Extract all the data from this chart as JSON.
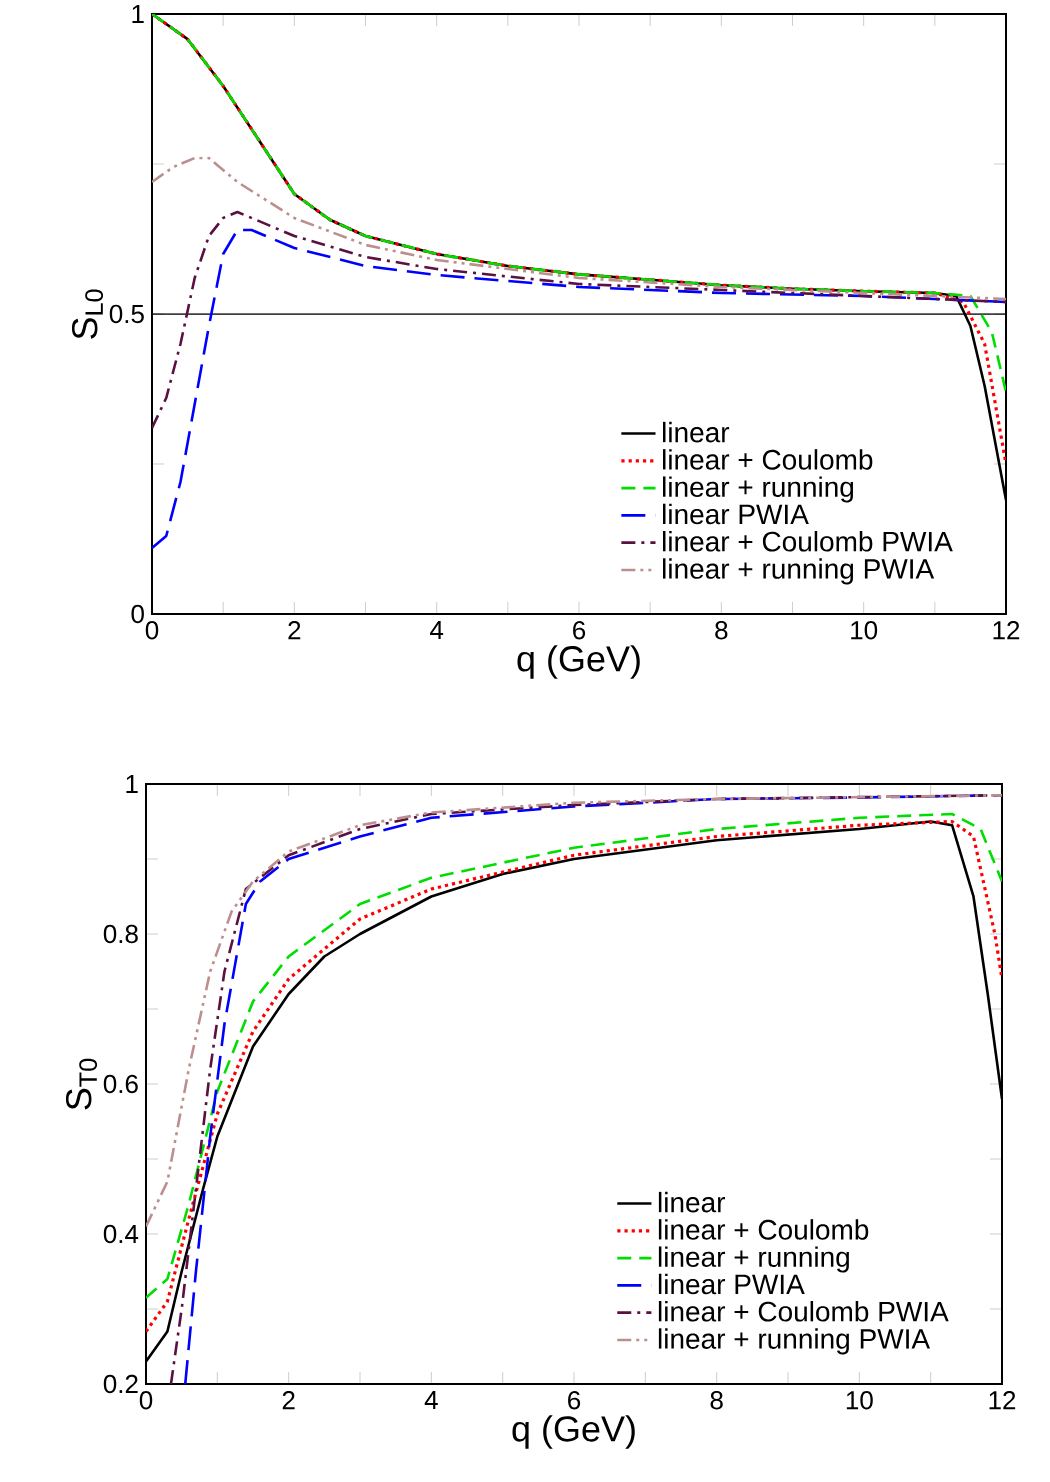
{
  "chart_data": [
    {
      "type": "line",
      "xlabel": "q (GeV)",
      "ylabel": "S$_{L0}$",
      "xlim": [
        0,
        12
      ],
      "ylim": [
        0,
        1
      ],
      "xticks": [
        0,
        {
          "value": 1,
          "label": null
        },
        2,
        {
          "value": 3,
          "label": null
        },
        4,
        {
          "value": 5,
          "label": null
        },
        6,
        {
          "value": 7,
          "label": null
        },
        8,
        {
          "value": 9,
          "label": null
        },
        10,
        {
          "value": 11,
          "label": null
        },
        12
      ],
      "yticks": [
        0,
        {
          "value": 0.25,
          "label": null
        },
        0.5,
        {
          "value": 0.75,
          "label": null
        },
        1
      ],
      "legend": "bottom right",
      "grid": false,
      "ref_lines": [
        {
          "axis": "y",
          "value": 0.5,
          "color": "#000000"
        }
      ],
      "series": [
        {
          "name": "linear",
          "color": "#000000",
          "line_style": "solid",
          "x": [
            0,
            0.5,
            1,
            1.5,
            2,
            2.5,
            3,
            4,
            5,
            6,
            7,
            8,
            9,
            10,
            11,
            11.3,
            11.5,
            11.7,
            12
          ],
          "values": [
            1,
            0.958,
            0.88,
            0.79,
            0.7,
            0.657,
            0.63,
            0.6,
            0.58,
            0.566,
            0.557,
            0.548,
            0.542,
            0.538,
            0.535,
            0.53,
            0.48,
            0.38,
            0.19
          ]
        },
        {
          "name": "linear + Coulomb",
          "color": "#ff0000",
          "line_style": "dotted",
          "x": [
            0,
            0.5,
            1,
            1.5,
            2,
            2.5,
            3,
            4,
            5,
            6,
            7,
            8,
            9,
            10,
            11,
            11.4,
            11.7,
            12
          ],
          "values": [
            1,
            0.958,
            0.88,
            0.79,
            0.7,
            0.657,
            0.63,
            0.6,
            0.58,
            0.566,
            0.557,
            0.548,
            0.542,
            0.538,
            0.535,
            0.52,
            0.45,
            0.25
          ]
        },
        {
          "name": "linear + running",
          "color": "#00dd00",
          "line_style": "dashed",
          "x": [
            0,
            0.5,
            1,
            1.5,
            2,
            2.5,
            3,
            4,
            5,
            6,
            7,
            8,
            9,
            10,
            11,
            11.5,
            11.8,
            12
          ],
          "values": [
            1,
            0.958,
            0.88,
            0.79,
            0.7,
            0.657,
            0.63,
            0.6,
            0.58,
            0.566,
            0.557,
            0.548,
            0.542,
            0.538,
            0.535,
            0.53,
            0.47,
            0.37
          ]
        },
        {
          "name": "linear PWIA",
          "color": "#0000ff",
          "line_style": "longdashed",
          "x": [
            0,
            0.2,
            0.4,
            0.6,
            0.8,
            1,
            1.2,
            1.4,
            2,
            3,
            4,
            6,
            8,
            10,
            12
          ],
          "values": [
            0.11,
            0.13,
            0.22,
            0.35,
            0.48,
            0.6,
            0.64,
            0.64,
            0.61,
            0.58,
            0.565,
            0.545,
            0.535,
            0.53,
            0.52
          ]
        },
        {
          "name": "linear + Coulomb PWIA",
          "color": "#5a1040",
          "line_style": "dashdot",
          "x": [
            0,
            0.2,
            0.4,
            0.6,
            0.8,
            1,
            1.2,
            2,
            3,
            4,
            6,
            8,
            10,
            12
          ],
          "values": [
            0.31,
            0.36,
            0.45,
            0.56,
            0.63,
            0.66,
            0.67,
            0.63,
            0.595,
            0.575,
            0.55,
            0.54,
            0.53,
            0.52
          ]
        },
        {
          "name": "linear + running PWIA",
          "color": "#bc8f8f",
          "line_style": "dashdotdot",
          "x": [
            0,
            0.3,
            0.6,
            0.8,
            1.2,
            2,
            3,
            4,
            6,
            8,
            10,
            12
          ],
          "values": [
            0.72,
            0.745,
            0.76,
            0.76,
            0.72,
            0.66,
            0.615,
            0.59,
            0.56,
            0.545,
            0.535,
            0.525
          ]
        }
      ]
    },
    {
      "type": "line",
      "xlabel": "q (GeV)",
      "ylabel": "S$_{T0}$",
      "xlim": [
        0,
        12
      ],
      "ylim": [
        0.2,
        1
      ],
      "xticks": [
        0,
        {
          "value": 1,
          "label": null
        },
        2,
        {
          "value": 3,
          "label": null
        },
        4,
        {
          "value": 5,
          "label": null
        },
        6,
        {
          "value": 7,
          "label": null
        },
        8,
        {
          "value": 9,
          "label": null
        },
        10,
        {
          "value": 11,
          "label": null
        },
        12
      ],
      "yticks": [
        0.2,
        {
          "value": 0.3,
          "label": null
        },
        0.4,
        {
          "value": 0.5,
          "label": null
        },
        0.6,
        {
          "value": 0.7,
          "label": null
        },
        0.8,
        {
          "value": 0.9,
          "label": null
        },
        1
      ],
      "legend": "bottom right",
      "grid": false,
      "series": [
        {
          "name": "linear",
          "color": "#000000",
          "line_style": "solid",
          "x": [
            0,
            0.3,
            0.5,
            0.8,
            1,
            1.5,
            2,
            2.5,
            3,
            4,
            5,
            6,
            8,
            10,
            11,
            11.3,
            11.6,
            11.8,
            12
          ],
          "values": [
            0.23,
            0.27,
            0.35,
            0.46,
            0.53,
            0.65,
            0.72,
            0.77,
            0.8,
            0.85,
            0.88,
            0.9,
            0.925,
            0.94,
            0.95,
            0.945,
            0.85,
            0.72,
            0.58
          ]
        },
        {
          "name": "linear + Coulomb",
          "color": "#ff0000",
          "line_style": "dotted",
          "x": [
            0,
            0.3,
            0.6,
            1,
            1.5,
            2,
            3,
            4,
            6,
            8,
            10,
            11.3,
            11.6,
            11.9,
            12
          ],
          "values": [
            0.27,
            0.31,
            0.42,
            0.56,
            0.67,
            0.74,
            0.82,
            0.86,
            0.905,
            0.93,
            0.945,
            0.95,
            0.93,
            0.8,
            0.74
          ]
        },
        {
          "name": "linear + running",
          "color": "#00dd00",
          "line_style": "dashed",
          "x": [
            0,
            0.3,
            0.6,
            1,
            1.5,
            2,
            3,
            4,
            6,
            8,
            10,
            11.3,
            11.7,
            12
          ],
          "values": [
            0.315,
            0.34,
            0.44,
            0.59,
            0.71,
            0.77,
            0.84,
            0.875,
            0.915,
            0.94,
            0.955,
            0.96,
            0.94,
            0.87
          ]
        },
        {
          "name": "linear PWIA",
          "color": "#0000ff",
          "line_style": "longdashed",
          "x": [
            0.55,
            0.7,
            0.9,
            1.1,
            1.4,
            1.6,
            2,
            3,
            4,
            6,
            8,
            10,
            12
          ],
          "values": [
            0.2,
            0.35,
            0.53,
            0.68,
            0.84,
            0.87,
            0.9,
            0.93,
            0.955,
            0.97,
            0.98,
            0.982,
            0.985
          ]
        },
        {
          "name": "linear + Coulomb PWIA",
          "color": "#5a1040",
          "line_style": "dashdot",
          "x": [
            0.35,
            0.5,
            0.7,
            0.9,
            1.1,
            1.4,
            2,
            3,
            4,
            6,
            8,
            12
          ],
          "values": [
            0.2,
            0.3,
            0.46,
            0.62,
            0.75,
            0.86,
            0.905,
            0.94,
            0.96,
            0.972,
            0.98,
            0.985
          ]
        },
        {
          "name": "linear + running PWIA",
          "color": "#bc8f8f",
          "line_style": "dashdotdot",
          "x": [
            0,
            0.3,
            0.6,
            0.9,
            1.2,
            1.5,
            2,
            3,
            4,
            6,
            8,
            12
          ],
          "values": [
            0.41,
            0.47,
            0.62,
            0.75,
            0.83,
            0.87,
            0.91,
            0.945,
            0.962,
            0.975,
            0.98,
            0.985
          ]
        }
      ]
    }
  ]
}
